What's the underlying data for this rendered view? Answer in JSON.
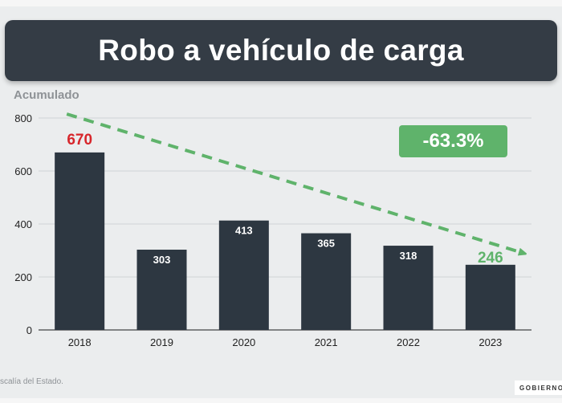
{
  "title": "Robo a vehículo de carga",
  "chart_data": {
    "type": "bar",
    "title": "Robo a vehículo de carga",
    "ylabel": "Acumulado",
    "xlabel": "",
    "categories": [
      "2018",
      "2019",
      "2020",
      "2021",
      "2022",
      "2023"
    ],
    "values": [
      670,
      303,
      413,
      365,
      318,
      246
    ],
    "ylim": [
      0,
      800
    ],
    "yticks": [
      0,
      200,
      400,
      600,
      800
    ],
    "grid": true,
    "trend_line": {
      "from_value": 815,
      "to_value": 290,
      "style": "dashed-arrow"
    },
    "change_label": "-63.3%",
    "highlight": {
      "first_value_color": "#d7262b",
      "last_value_color": "#5fb36b"
    }
  },
  "source_note": "scalía del Estado.",
  "logo_text": "GOBIERNO",
  "colors": {
    "bar": "#2d3741",
    "title_bg": "#343c45",
    "trend": "#5fb36b",
    "accent_red": "#d7262b",
    "grid": "#cfd2d5",
    "axis_text": "#222222"
  }
}
